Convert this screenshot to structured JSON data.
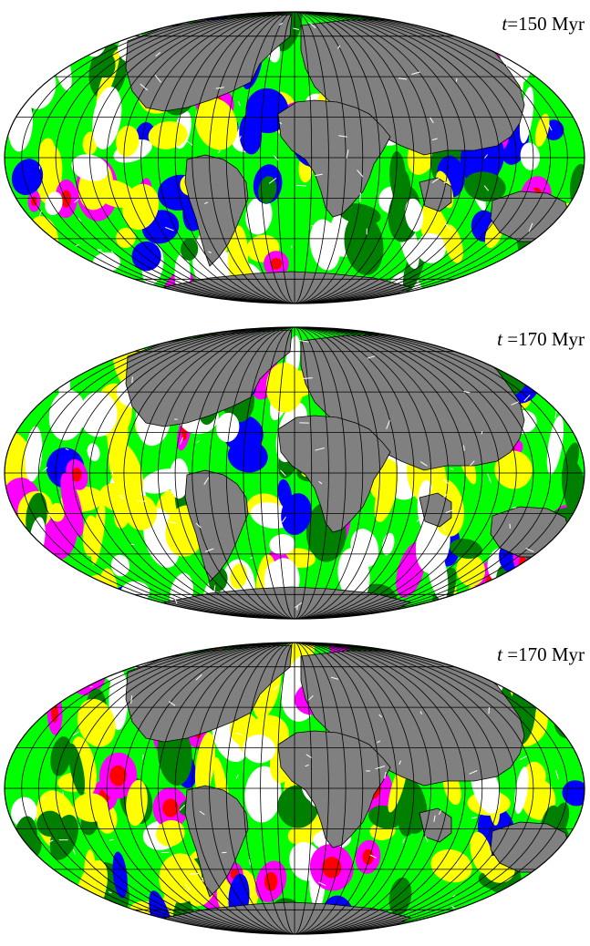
{
  "panels": [
    {
      "label_var": "t",
      "label_rest": "=150 Myr",
      "variant": 1
    },
    {
      "label_var": "t",
      "label_rest": " =170 Myr",
      "variant": 2
    },
    {
      "label_var": "t",
      "label_rest": " =170 Myr",
      "variant": 3
    }
  ],
  "colors": {
    "ocean_green": "#00ff00",
    "dark_green": "#008000",
    "yellow": "#ffff00",
    "magenta": "#ff00ff",
    "red": "#ff0000",
    "blue": "#0000ff",
    "white": "#ffffff",
    "continent_gray": "#808080",
    "grid": "#000000"
  }
}
